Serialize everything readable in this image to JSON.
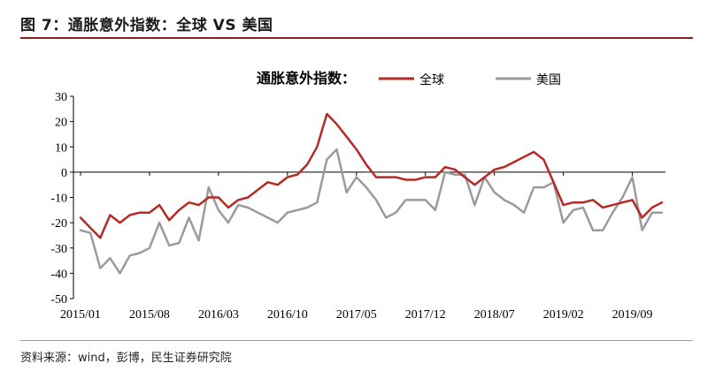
{
  "figure": {
    "title": "图 7：通胀意外指数：全球 VS 美国",
    "source": "资料来源：wind，彭博，民生证券研究院"
  },
  "chart_data": {
    "type": "line",
    "title": "通胀意外指数：",
    "ylim": [
      -50,
      30
    ],
    "yticks": [
      30,
      20,
      10,
      0,
      -10,
      -20,
      -30,
      -40,
      -50
    ],
    "x_start": "2015/01",
    "x_tick_labels": [
      "2015/01",
      "2015/08",
      "2016/03",
      "2016/10",
      "2017/05",
      "2017/12",
      "2018/07",
      "2019/02",
      "2019/09"
    ],
    "grid": false,
    "legend_position": "top",
    "series": [
      {
        "name": "全球",
        "color": "#b52a25",
        "values": [
          -18,
          -22,
          -26,
          -17,
          -20,
          -17,
          -16,
          -16,
          -13,
          -19,
          -15,
          -12,
          -13,
          -10,
          -10,
          -14,
          -11,
          -10,
          -7,
          -4,
          -5,
          -2,
          -1,
          3,
          10,
          23,
          19,
          14,
          9,
          3,
          -2,
          -2,
          -2,
          -3,
          -3,
          -2,
          -2,
          2,
          1,
          -2,
          -5,
          -2,
          1,
          2,
          4,
          6,
          8,
          5,
          -4,
          -13,
          -12,
          -12,
          -11,
          -14,
          -13,
          -12,
          -11,
          -18,
          -14,
          -12
        ]
      },
      {
        "name": "美国",
        "color": "#9b9b9b",
        "values": [
          -23,
          -24,
          -38,
          -34,
          -40,
          -33,
          -32,
          -30,
          -20,
          -29,
          -28,
          -18,
          -27,
          -6,
          -15,
          -20,
          -13,
          -14,
          -16,
          -18,
          -20,
          -16,
          -15,
          -14,
          -12,
          5,
          9,
          -8,
          -2,
          -6,
          -11,
          -18,
          -16,
          -11,
          -11,
          -11,
          -15,
          0,
          -1,
          -1,
          -13,
          -2,
          -8,
          -11,
          -13,
          -16,
          -6,
          -6,
          -4,
          -20,
          -15,
          -14,
          -23,
          -23,
          -16,
          -10,
          -2,
          -23,
          -16,
          -16
        ]
      }
    ]
  }
}
